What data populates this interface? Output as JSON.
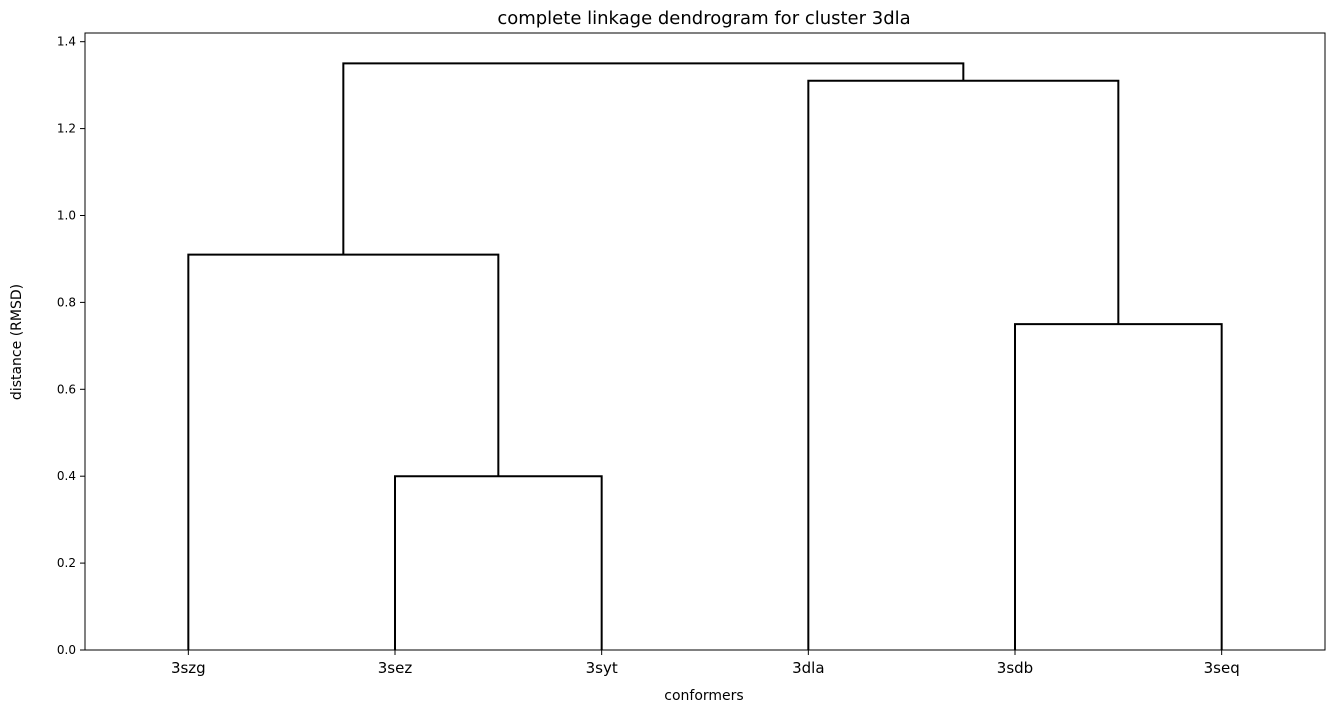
{
  "chart_data": {
    "type": "dendrogram",
    "title": "complete linkage dendrogram for cluster 3dla",
    "xlabel": "conformers",
    "ylabel": "distance (RMSD)",
    "leaves": [
      "3szg",
      "3sez",
      "3syt",
      "3dla",
      "3sdb",
      "3seq"
    ],
    "ylim": [
      0,
      1.42
    ],
    "yticks": [
      0.0,
      0.2,
      0.4,
      0.6,
      0.8,
      1.0,
      1.2,
      1.4
    ],
    "ytick_labels": [
      "0.0",
      "0.2",
      "0.4",
      "0.6",
      "0.8",
      "1.0",
      "1.2",
      "1.4"
    ],
    "merges": [
      {
        "members": [
          "3sez",
          "3syt"
        ],
        "distance": 0.4
      },
      {
        "members": [
          "3sdb",
          "3seq"
        ],
        "distance": 0.75
      },
      {
        "members": [
          "3szg",
          "3sez",
          "3syt"
        ],
        "distance": 0.91
      },
      {
        "members": [
          "3dla",
          "3sdb",
          "3seq"
        ],
        "distance": 1.31
      },
      {
        "members": [
          "3szg",
          "3sez",
          "3syt",
          "3dla",
          "3sdb",
          "3seq"
        ],
        "distance": 1.35
      }
    ],
    "link_color": "#000000",
    "grid": false
  }
}
